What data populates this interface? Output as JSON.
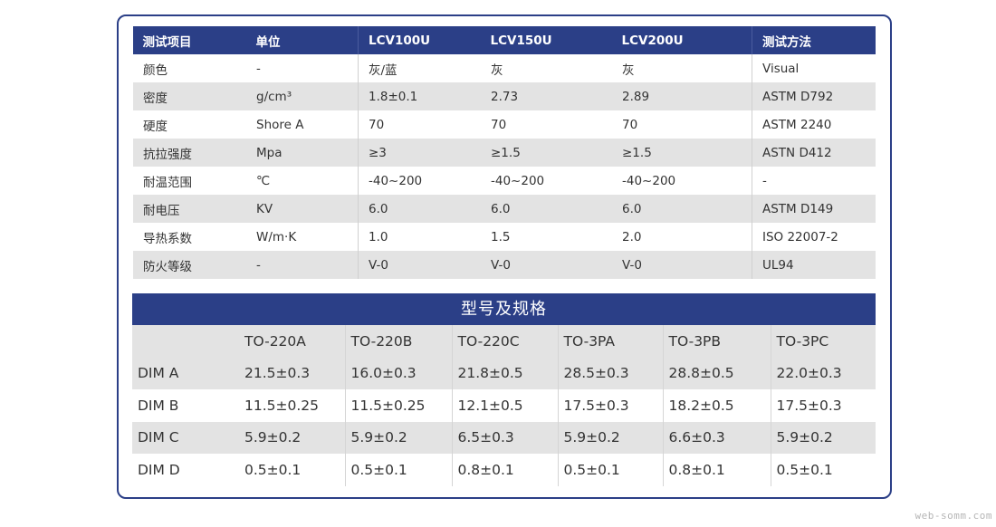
{
  "properties": {
    "headers": [
      "测试项目",
      "单位",
      "LCV100U",
      "LCV150U",
      "LCV200U",
      "测试方法"
    ],
    "rows": [
      [
        "颜色",
        "-",
        "灰/蓝",
        "灰",
        "灰",
        "Visual"
      ],
      [
        "密度",
        "g/cm³",
        "1.8±0.1",
        "2.73",
        "2.89",
        "ASTM D792"
      ],
      [
        "硬度",
        "Shore A",
        "70",
        "70",
        "70",
        "ASTM 2240"
      ],
      [
        "抗拉强度",
        "Mpa",
        "≥3",
        "≥1.5",
        "≥1.5",
        "ASTN D412"
      ],
      [
        "耐温范围",
        "℃",
        "-40~200",
        "-40~200",
        "-40~200",
        "-"
      ],
      [
        "耐电压",
        "KV",
        "6.0",
        "6.0",
        "6.0",
        "ASTM D149"
      ],
      [
        "导热系数",
        "W/m·K",
        "1.0",
        "1.5",
        "2.0",
        "ISO 22007-2"
      ],
      [
        "防火等级",
        "-",
        "V-0",
        "V-0",
        "V-0",
        "UL94"
      ]
    ]
  },
  "specs": {
    "title": "型号及规格",
    "columns": [
      "",
      "TO-220A",
      "TO-220B",
      "TO-220C",
      "TO-3PA",
      "TO-3PB",
      "TO-3PC"
    ],
    "rows": [
      [
        "DIM A",
        "21.5±0.3",
        "16.0±0.3",
        "21.8±0.5",
        "28.5±0.3",
        "28.8±0.5",
        "22.0±0.3"
      ],
      [
        "DIM B",
        "11.5±0.25",
        "11.5±0.25",
        "12.1±0.5",
        "17.5±0.3",
        "18.2±0.5",
        "17.5±0.3"
      ],
      [
        "DIM C",
        "5.9±0.2",
        "5.9±0.2",
        "6.5±0.3",
        "5.9±0.2",
        "6.6±0.3",
        "5.9±0.2"
      ],
      [
        "DIM D",
        "0.5±0.1",
        "0.5±0.1",
        "0.8±0.1",
        "0.5±0.1",
        "0.8±0.1",
        "0.5±0.1"
      ]
    ]
  },
  "watermark": "web-somm.com",
  "colors": {
    "header_bg": "#2b3f87",
    "stripe": "#e3e3e3",
    "border": "#2b3f87"
  }
}
